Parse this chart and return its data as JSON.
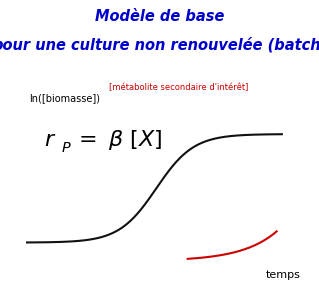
{
  "title_line1": "Modèle de base",
  "title_line2": "pour une culture non renouvelée (batch)",
  "title_color": "#0000cc",
  "title_fontsize": 10.5,
  "ylabel": "ln([biomasse])",
  "xlabel": "temps",
  "red_label": "[métabolite secondaire d'intérêt]",
  "formula_fontsize": 16,
  "background_color": "#ffffff",
  "curve_color": "#111111",
  "red_curve_color": "#cc0000",
  "arrow_color": "#111111",
  "red_arrow_color": "#cc0000",
  "fig_width": 3.19,
  "fig_height": 2.87,
  "dpi": 100
}
